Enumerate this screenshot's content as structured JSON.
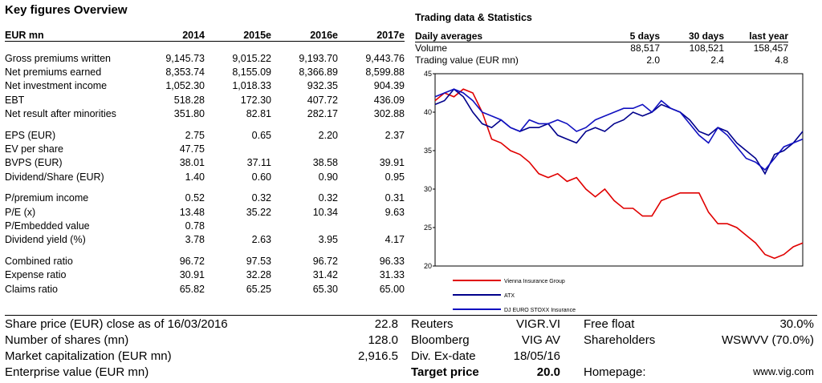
{
  "title": "Key figures Overview",
  "key_figures": {
    "headers": [
      "EUR mn",
      "2014",
      "2015e",
      "2016e",
      "2017e"
    ],
    "groups": [
      [
        [
          "Gross premiums written",
          "9,145.73",
          "9,015.22",
          "9,193.70",
          "9,443.76"
        ],
        [
          "Net premiums earned",
          "8,353.74",
          "8,155.09",
          "8,366.89",
          "8,599.88"
        ],
        [
          "Net investment income",
          "1,052.30",
          "1,018.33",
          "932.35",
          "904.39"
        ],
        [
          "EBT",
          "518.28",
          "172.30",
          "407.72",
          "436.09"
        ],
        [
          "Net result after minorities",
          "351.80",
          "82.81",
          "282.17",
          "302.88"
        ]
      ],
      [
        [
          "EPS (EUR)",
          "2.75",
          "0.65",
          "2.20",
          "2.37"
        ],
        [
          "EV per share",
          "47.75",
          "",
          "",
          ""
        ],
        [
          "BVPS (EUR)",
          "38.01",
          "37.11",
          "38.58",
          "39.91"
        ],
        [
          "Dividend/Share (EUR)",
          "1.40",
          "0.60",
          "0.90",
          "0.95"
        ]
      ],
      [
        [
          "P/premium income",
          "0.52",
          "0.32",
          "0.32",
          "0.31"
        ],
        [
          "P/E (x)",
          "13.48",
          "35.22",
          "10.34",
          "9.63"
        ],
        [
          "P/Embedded value",
          "0.78",
          "",
          "",
          ""
        ],
        [
          "Dividend yield (%)",
          "3.78",
          "2.63",
          "3.95",
          "4.17"
        ]
      ],
      [
        [
          "Combined ratio",
          "96.72",
          "97.53",
          "96.72",
          "96.33"
        ],
        [
          "Expense ratio",
          "30.91",
          "32.28",
          "31.42",
          "31.33"
        ],
        [
          "Claims ratio",
          "65.82",
          "65.25",
          "65.30",
          "65.00"
        ]
      ]
    ]
  },
  "trading": {
    "title": "Trading data & Statistics",
    "headers": [
      "Daily averages",
      "5 days",
      "30 days",
      "last year"
    ],
    "rows": [
      [
        "Volume",
        "88,517",
        "108,521",
        "158,457"
      ],
      [
        "Trading value (EUR mn)",
        "2.0",
        "2.4",
        "4.8"
      ]
    ]
  },
  "chart_data": {
    "type": "line",
    "ylim": [
      20,
      45
    ],
    "yticks": [
      "45",
      "40",
      "35",
      "30",
      "25",
      "20"
    ],
    "series": [
      {
        "name": "Vienna Insurance Group",
        "color": "#e00000",
        "values": [
          41.5,
          42.5,
          42,
          43,
          42.5,
          40,
          36.5,
          36,
          35,
          34.5,
          33.5,
          32,
          31.5,
          32,
          31,
          31.5,
          30,
          29,
          30,
          28.5,
          27.5,
          27.5,
          26.5,
          26.5,
          28.5,
          29,
          29.5,
          29.5,
          29.5,
          27,
          25.5,
          25.5,
          25,
          24,
          23,
          21.5,
          21,
          21.5,
          22.5,
          23
        ]
      },
      {
        "name": "ATX",
        "color": "#00008b",
        "values": [
          41,
          41.5,
          43,
          42,
          40,
          38.5,
          38,
          39,
          38,
          37.5,
          38,
          38,
          38.5,
          37,
          36.5,
          36,
          37.5,
          38,
          37.5,
          38.5,
          39,
          40,
          39.5,
          40,
          41,
          40.5,
          40,
          39,
          37.5,
          37,
          38,
          37.5,
          36,
          35,
          34,
          32,
          34.5,
          35,
          36,
          37.5
        ]
      },
      {
        "name": "DJ EURO STOXX Insurance",
        "color": "#1010c0",
        "values": [
          42,
          42.5,
          43,
          42.5,
          41.5,
          40,
          39.5,
          39,
          38,
          37.5,
          39,
          38.5,
          38.5,
          39,
          38.5,
          37.5,
          38,
          39,
          39.5,
          40,
          40.5,
          40.5,
          41,
          40,
          41.5,
          40.5,
          40,
          38.5,
          37,
          36,
          38,
          37,
          35.5,
          34,
          33.5,
          32.5,
          34,
          35.5,
          36,
          36.5
        ]
      }
    ]
  },
  "bottom": {
    "share_price_label": "Share price (EUR) close as of 16/03/2016",
    "share_price": "22.8",
    "shares_label": "Number of shares (mn)",
    "shares": "128.0",
    "mcap_label": "Market capitalization (EUR mn)",
    "mcap": "2,916.5",
    "ev_label": "Enterprise value (EUR mn)",
    "reuters_label": "Reuters",
    "reuters": "VIGR.VI",
    "bloomberg_label": "Bloomberg",
    "bloomberg": "VIG AV",
    "exdate_label": "Div. Ex-date",
    "exdate": "18/05/16",
    "target_label": "Target price",
    "target": "20.0",
    "free_float_label": "Free float",
    "free_float": "30.0%",
    "shareholders_label": "Shareholders",
    "shareholders": "WSWVV (70.0%)",
    "homepage_label": "Homepage:",
    "homepage": "www.vig.com"
  }
}
